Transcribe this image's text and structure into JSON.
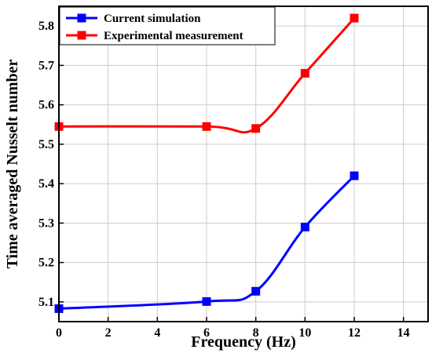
{
  "chart_data": {
    "type": "line",
    "xlabel": "Frequency (Hz)",
    "ylabel": "Time averaged Nusselt number",
    "xlim": [
      0,
      15
    ],
    "ylim": [
      5.05,
      5.85
    ],
    "x_ticks": [
      "0",
      "2",
      "4",
      "6",
      "8",
      "10",
      "12",
      "14"
    ],
    "y_ticks": [
      "5.1",
      "5.2",
      "5.3",
      "5.4",
      "5.5",
      "5.6",
      "5.7",
      "5.8"
    ],
    "grid": true,
    "legend_position": "top-left",
    "series": [
      {
        "name": "Current simulation",
        "color": "#0000ff",
        "marker": "square",
        "x": [
          0,
          6,
          8,
          10,
          12
        ],
        "y": [
          5.083,
          5.101,
          5.127,
          5.29,
          5.42
        ]
      },
      {
        "name": "Experimental measurement",
        "color": "#ff0000",
        "marker": "square",
        "x": [
          0,
          6,
          8,
          10,
          12
        ],
        "y": [
          5.545,
          5.545,
          5.54,
          5.68,
          5.82
        ]
      }
    ]
  }
}
